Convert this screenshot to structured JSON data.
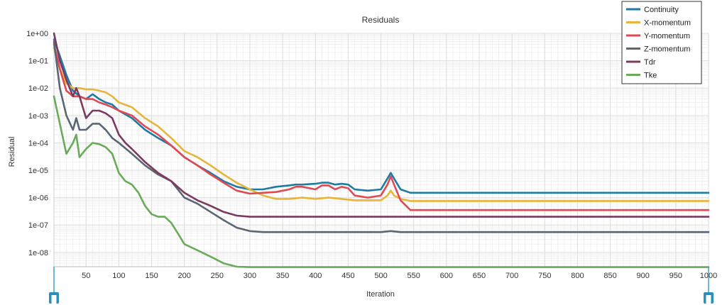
{
  "chart_data": {
    "type": "line",
    "title": "Residuals",
    "xlabel": "Iteration",
    "ylabel": "Residual",
    "xlim": [
      1,
      1000
    ],
    "ylim": [
      3e-09,
      1
    ],
    "y_scale": "log",
    "grid": true,
    "legend_position": "top-right",
    "x_ticks": [
      50,
      100,
      150,
      200,
      250,
      300,
      350,
      400,
      450,
      500,
      550,
      600,
      650,
      700,
      750,
      800,
      850,
      900,
      950,
      1000
    ],
    "y_ticks": [
      1,
      0.1,
      0.01,
      0.001,
      0.0001,
      1e-05,
      1e-06,
      1e-07,
      1e-08
    ],
    "y_tick_labels": [
      "1e+00",
      "1e-01",
      "1e-02",
      "1e-03",
      "1e-04",
      "1e-05",
      "1e-06",
      "1e-07",
      "1e-08"
    ],
    "x_tick_labels": [
      "50",
      "100",
      "150",
      "200",
      "250",
      "300",
      "350",
      "400",
      "450",
      "500",
      "550",
      "600",
      "650",
      "700",
      "750",
      "800",
      "850",
      "900",
      "950",
      "1000"
    ],
    "series": [
      {
        "name": "Continuity",
        "color": "#1e7ba3",
        "points": [
          [
            1,
            0.6
          ],
          [
            10,
            0.15
          ],
          [
            20,
            0.03
          ],
          [
            30,
            0.008
          ],
          [
            40,
            0.005
          ],
          [
            50,
            0.004
          ],
          [
            60,
            0.006
          ],
          [
            70,
            0.004
          ],
          [
            80,
            0.003
          ],
          [
            90,
            0.0025
          ],
          [
            100,
            0.0015
          ],
          [
            120,
            0.0008
          ],
          [
            140,
            0.0003
          ],
          [
            160,
            0.00015
          ],
          [
            180,
            8e-05
          ],
          [
            200,
            3e-05
          ],
          [
            220,
            1.5e-05
          ],
          [
            240,
            8e-06
          ],
          [
            260,
            4e-06
          ],
          [
            280,
            2.5e-06
          ],
          [
            300,
            2e-06
          ],
          [
            320,
            2e-06
          ],
          [
            340,
            2.5e-06
          ],
          [
            360,
            2.8e-06
          ],
          [
            370,
            3e-06
          ],
          [
            380,
            3e-06
          ],
          [
            400,
            3.2e-06
          ],
          [
            410,
            3.5e-06
          ],
          [
            420,
            3.5e-06
          ],
          [
            430,
            3e-06
          ],
          [
            440,
            3.2e-06
          ],
          [
            450,
            3e-06
          ],
          [
            460,
            2e-06
          ],
          [
            480,
            1.8e-06
          ],
          [
            500,
            2e-06
          ],
          [
            510,
            5e-06
          ],
          [
            515,
            8e-06
          ],
          [
            520,
            5e-06
          ],
          [
            530,
            2e-06
          ],
          [
            545,
            1.5e-06
          ],
          [
            600,
            1.5e-06
          ],
          [
            800,
            1.5e-06
          ],
          [
            1000,
            1.5e-06
          ]
        ]
      },
      {
        "name": "X-momentum",
        "color": "#e8b53a",
        "points": [
          [
            1,
            0.3
          ],
          [
            10,
            0.05
          ],
          [
            20,
            0.015
          ],
          [
            30,
            0.01
          ],
          [
            40,
            0.01
          ],
          [
            50,
            0.009
          ],
          [
            60,
            0.009
          ],
          [
            70,
            0.008
          ],
          [
            80,
            0.007
          ],
          [
            90,
            0.005
          ],
          [
            100,
            0.003
          ],
          [
            120,
            0.002
          ],
          [
            140,
            0.0008
          ],
          [
            160,
            0.0004
          ],
          [
            180,
            0.00015
          ],
          [
            200,
            5e-05
          ],
          [
            220,
            3e-05
          ],
          [
            240,
            1.5e-05
          ],
          [
            260,
            7e-06
          ],
          [
            280,
            3.5e-06
          ],
          [
            300,
            2e-06
          ],
          [
            320,
            1.2e-06
          ],
          [
            340,
            9e-07
          ],
          [
            360,
            9e-07
          ],
          [
            380,
            1e-06
          ],
          [
            400,
            9e-07
          ],
          [
            420,
            1e-06
          ],
          [
            440,
            9e-07
          ],
          [
            460,
            8e-07
          ],
          [
            500,
            8e-07
          ],
          [
            510,
            1.2e-06
          ],
          [
            515,
            1.8e-06
          ],
          [
            520,
            1.2e-06
          ],
          [
            530,
            9e-07
          ],
          [
            545,
            7.5e-07
          ],
          [
            1000,
            7.5e-07
          ]
        ]
      },
      {
        "name": "Y-momentum",
        "color": "#de4a54",
        "points": [
          [
            1,
            0.4
          ],
          [
            10,
            0.05
          ],
          [
            20,
            0.008
          ],
          [
            30,
            0.005
          ],
          [
            40,
            0.005
          ],
          [
            50,
            0.004
          ],
          [
            60,
            0.004
          ],
          [
            70,
            0.003
          ],
          [
            80,
            0.0025
          ],
          [
            90,
            0.002
          ],
          [
            100,
            0.0015
          ],
          [
            120,
            0.001
          ],
          [
            140,
            0.0004
          ],
          [
            160,
            0.0002
          ],
          [
            180,
            8e-05
          ],
          [
            200,
            3e-05
          ],
          [
            220,
            1.5e-05
          ],
          [
            240,
            7e-06
          ],
          [
            260,
            3.5e-06
          ],
          [
            280,
            1.8e-06
          ],
          [
            300,
            1.4e-06
          ],
          [
            320,
            1.5e-06
          ],
          [
            340,
            1.6e-06
          ],
          [
            360,
            2e-06
          ],
          [
            370,
            2.5e-06
          ],
          [
            380,
            2.5e-06
          ],
          [
            400,
            2e-06
          ],
          [
            410,
            2.8e-06
          ],
          [
            420,
            2.8e-06
          ],
          [
            430,
            2e-06
          ],
          [
            440,
            2.5e-06
          ],
          [
            450,
            2.2e-06
          ],
          [
            460,
            1.2e-06
          ],
          [
            480,
            1e-06
          ],
          [
            500,
            1.2e-06
          ],
          [
            510,
            3e-06
          ],
          [
            515,
            6e-06
          ],
          [
            520,
            3e-06
          ],
          [
            530,
            8e-07
          ],
          [
            545,
            3.5e-07
          ],
          [
            1000,
            3.5e-07
          ]
        ]
      },
      {
        "name": "Z-momentum",
        "color": "#5b6675",
        "points": [
          [
            1,
            0.5
          ],
          [
            10,
            0.01
          ],
          [
            20,
            0.001
          ],
          [
            30,
            0.0003
          ],
          [
            35,
            0.0008
          ],
          [
            40,
            0.0003
          ],
          [
            50,
            0.0003
          ],
          [
            60,
            0.0005
          ],
          [
            70,
            0.0005
          ],
          [
            80,
            0.0003
          ],
          [
            90,
            0.00015
          ],
          [
            100,
            0.0001
          ],
          [
            120,
            4e-05
          ],
          [
            140,
            1.5e-05
          ],
          [
            160,
            7e-06
          ],
          [
            180,
            4e-06
          ],
          [
            200,
            1e-06
          ],
          [
            220,
            6e-07
          ],
          [
            240,
            3e-07
          ],
          [
            260,
            1.5e-07
          ],
          [
            280,
            8e-08
          ],
          [
            300,
            6e-08
          ],
          [
            320,
            5.5e-08
          ],
          [
            340,
            5.5e-08
          ],
          [
            400,
            5.5e-08
          ],
          [
            500,
            5.5e-08
          ],
          [
            515,
            6e-08
          ],
          [
            530,
            5.5e-08
          ],
          [
            1000,
            5.5e-08
          ]
        ]
      },
      {
        "name": "Tdr",
        "color": "#7b3a5e",
        "points": [
          [
            1,
            1
          ],
          [
            10,
            0.1
          ],
          [
            20,
            0.02
          ],
          [
            30,
            0.005
          ],
          [
            35,
            0.01
          ],
          [
            40,
            0.005
          ],
          [
            50,
            0.0008
          ],
          [
            60,
            0.0015
          ],
          [
            70,
            0.0015
          ],
          [
            80,
            0.0012
          ],
          [
            90,
            0.0008
          ],
          [
            100,
            0.0002
          ],
          [
            110,
            0.0001
          ],
          [
            120,
            6e-05
          ],
          [
            140,
            2e-05
          ],
          [
            160,
            8e-06
          ],
          [
            180,
            4e-06
          ],
          [
            200,
            1.5e-06
          ],
          [
            220,
            8e-07
          ],
          [
            240,
            5e-07
          ],
          [
            260,
            3e-07
          ],
          [
            280,
            2.2e-07
          ],
          [
            300,
            2e-07
          ],
          [
            350,
            2e-07
          ],
          [
            1000,
            2e-07
          ]
        ]
      },
      {
        "name": "Tke",
        "color": "#6aaa5a",
        "points": [
          [
            1,
            0.005
          ],
          [
            10,
            0.0005
          ],
          [
            20,
            4e-05
          ],
          [
            30,
            0.0001
          ],
          [
            35,
            0.0002
          ],
          [
            40,
            3e-05
          ],
          [
            50,
            6e-05
          ],
          [
            60,
            0.0001
          ],
          [
            70,
            9e-05
          ],
          [
            80,
            7e-05
          ],
          [
            90,
            4e-05
          ],
          [
            100,
            8e-06
          ],
          [
            110,
            4e-06
          ],
          [
            120,
            3e-06
          ],
          [
            130,
            1.5e-06
          ],
          [
            140,
            5e-07
          ],
          [
            150,
            2.5e-07
          ],
          [
            160,
            2e-07
          ],
          [
            170,
            2e-07
          ],
          [
            180,
            1.2e-07
          ],
          [
            190,
            5e-08
          ],
          [
            200,
            2e-08
          ],
          [
            220,
            1.2e-08
          ],
          [
            240,
            7e-09
          ],
          [
            260,
            4e-09
          ],
          [
            280,
            3e-09
          ],
          [
            300,
            2.9e-09
          ],
          [
            1000,
            2.9e-09
          ]
        ]
      }
    ]
  }
}
